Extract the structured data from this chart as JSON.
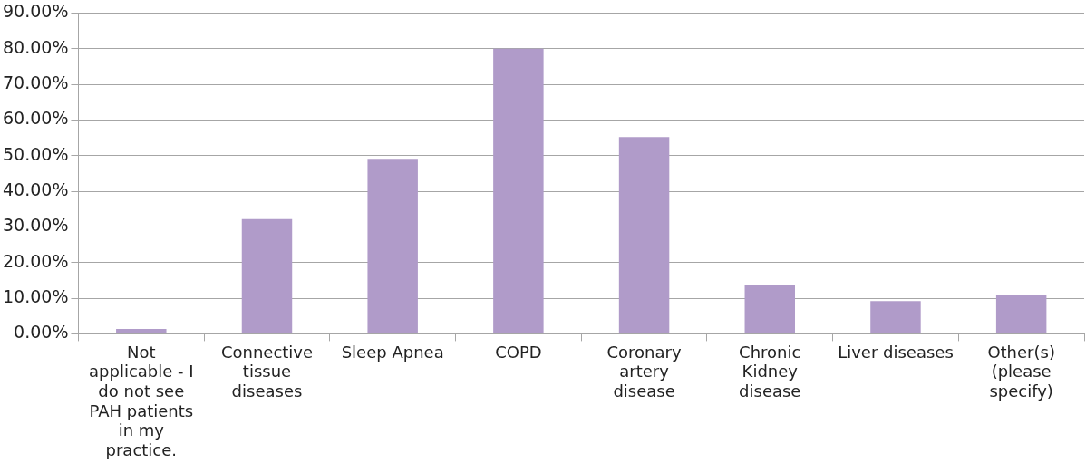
{
  "chart_data": {
    "type": "bar",
    "categories": [
      "Not applicable - I do not see PAH patients in my practice.",
      "Connective tissue diseases",
      "Sleep Apnea",
      "COPD",
      "Coronary artery disease",
      "Chronic Kidney disease",
      "Liver diseases",
      "Other(s) (please specify)"
    ],
    "values": [
      1.4,
      32.2,
      49.1,
      80.0,
      55.2,
      13.8,
      9.2,
      10.8
    ],
    "color": "#b09bc9",
    "ylim": [
      0,
      90
    ],
    "yticks": [
      {
        "value": 0,
        "label": "0.00%"
      },
      {
        "value": 10,
        "label": "10.00%"
      },
      {
        "value": 20,
        "label": "20.00%"
      },
      {
        "value": 30,
        "label": "30.00%"
      },
      {
        "value": 40,
        "label": "40.00%"
      },
      {
        "value": 50,
        "label": "50.00%"
      },
      {
        "value": 60,
        "label": "60.00%"
      },
      {
        "value": 70,
        "label": "70.00%"
      },
      {
        "value": 80,
        "label": "80.00%"
      },
      {
        "value": 90,
        "label": "90.00%"
      }
    ],
    "grid": "y"
  }
}
